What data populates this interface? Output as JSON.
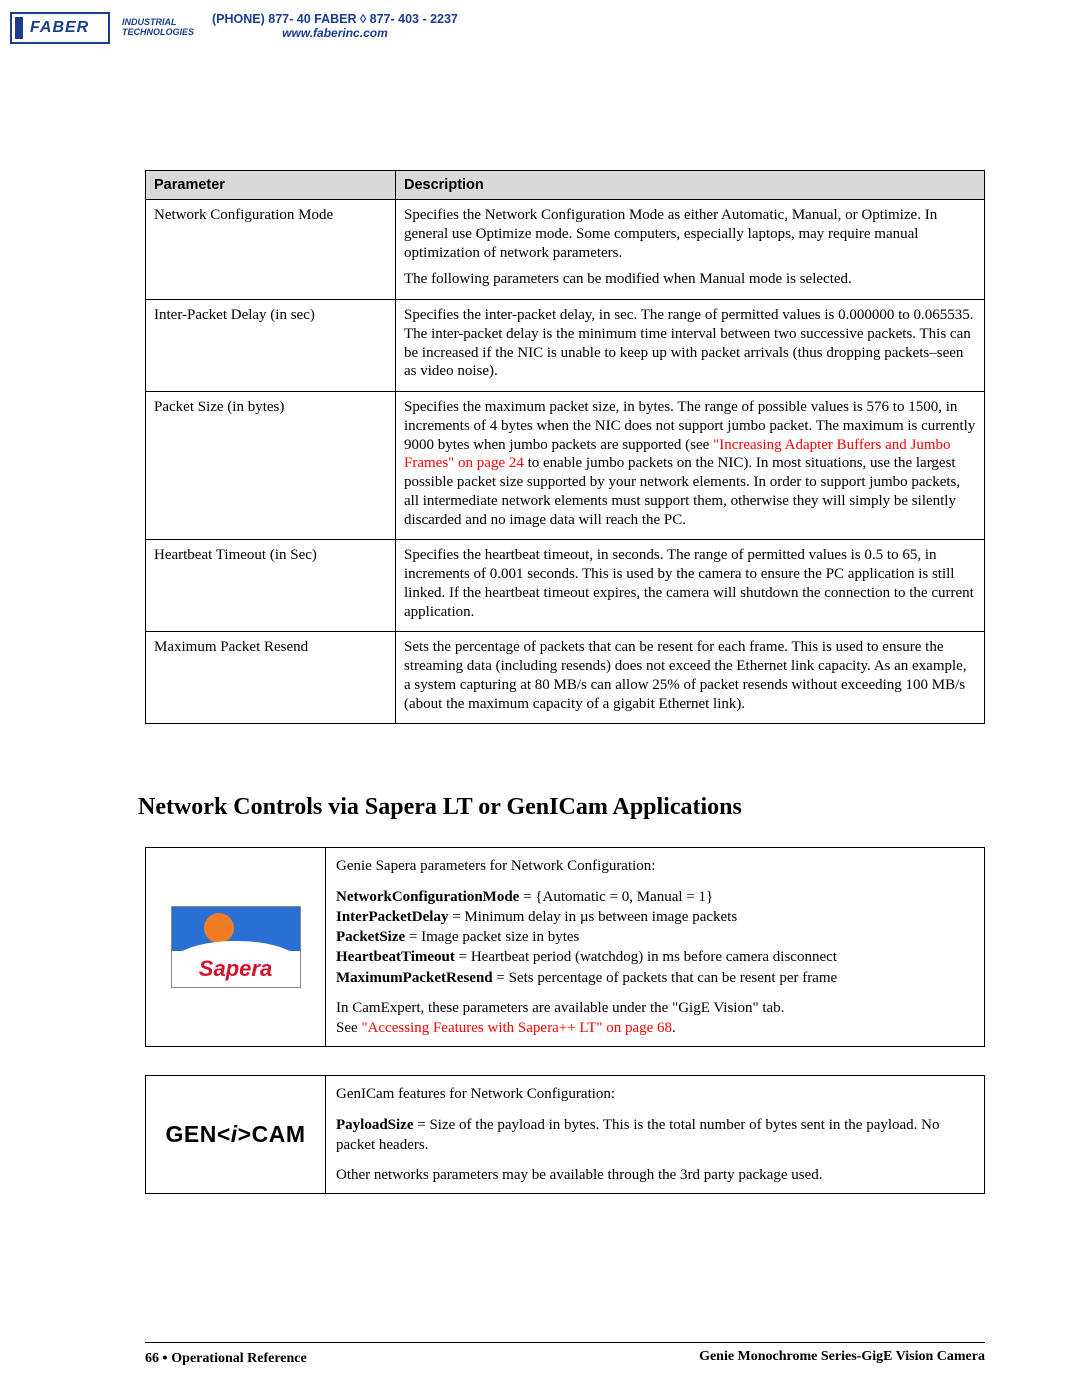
{
  "header": {
    "logo_name": "FABER",
    "logo_sub1": "INDUSTRIAL",
    "logo_sub2": "TECHNOLOGIES",
    "phone": "(PHONE) 877- 40 FABER  ◊  877- 403 - 2237",
    "url": "www.faberinc.com"
  },
  "param_table": {
    "headers": [
      "Parameter",
      "Description"
    ],
    "rows": [
      {
        "param": "Network Configuration Mode",
        "desc": [
          "Specifies the Network Configuration Mode as either Automatic, Manual, or Optimize. In general use Optimize mode. Some computers, especially laptops, may require manual optimization of network parameters.",
          "The following parameters can be modified when Manual mode is selected."
        ]
      },
      {
        "param": "Inter-Packet Delay (in sec)",
        "desc": [
          "Specifies the inter-packet delay, in sec. The range of permitted values is 0.000000 to 0.065535. The inter-packet delay is the minimum time interval between two successive packets. This can be increased if the NIC is unable to keep up with packet arrivals (thus dropping packets–seen as video noise)."
        ]
      },
      {
        "param": "Packet Size (in bytes)",
        "desc_pre": "Specifies the maximum packet size, in bytes. The range of possible values is 576 to 1500, in increments of 4 bytes when the NIC does not support jumbo packet. The maximum is currently 9000 bytes when jumbo packets are supported (see ",
        "desc_link": "\"Increasing Adapter Buffers and Jumbo Frames\" on page 24",
        "desc_post": " to enable jumbo packets on the NIC). In most situations, use the largest possible packet size supported by your network elements. In order to support jumbo packets, all intermediate network elements must support them, otherwise they will simply be silently discarded and no image data will reach the PC."
      },
      {
        "param": "Heartbeat Timeout (in Sec)",
        "desc": [
          "Specifies the heartbeat timeout, in seconds. The range of permitted values is 0.5 to 65, in increments of 0.001 seconds. This is used by the camera to ensure the PC application is still linked. If the heartbeat timeout expires, the camera will shutdown the connection to the current application."
        ]
      },
      {
        "param": "Maximum Packet Resend",
        "desc": [
          "Sets the percentage of packets that can be resent for each frame. This is used to ensure the streaming data (including resends) does not exceed the Ethernet link capacity. As an example, a system capturing at 80 MB/s can allow 25% of packet resends without exceeding 100 MB/s (about the maximum capacity of a gigabit Ethernet link)."
        ]
      }
    ]
  },
  "section_heading": "Network Controls via Sapera LT or GenICam Applications",
  "sapera_box": {
    "logo_text": "Sapera",
    "intro": "Genie Sapera parameters for Network Configuration:",
    "params": [
      {
        "name": "NetworkConfigurationMode",
        "rest": " = {Automatic = 0, Manual = 1}"
      },
      {
        "name": "InterPacketDelay",
        "rest": " = Minimum delay in µs between image packets"
      },
      {
        "name": "PacketSize",
        "rest": " = Image packet size in bytes"
      },
      {
        "name": "HeartbeatTimeout",
        "rest": " = Heartbeat period (watchdog) in ms before camera disconnect"
      },
      {
        "name": "MaximumPacketResend",
        "rest": " = Sets percentage of packets that can be resent per frame"
      }
    ],
    "tail_pre": "In CamExpert, these parameters are available under the \"GigE Vision\" tab.",
    "tail_see": "See ",
    "tail_link": "\"Accessing Features with Sapera++ LT\" on page 68",
    "tail_post": "."
  },
  "genicam_box": {
    "intro": "GenICam features for Network Configuration:",
    "param_name": "PayloadSize",
    "param_rest": " = Size of the payload in bytes. This is the total number of bytes sent in the payload. No packet headers.",
    "tail": "Other networks parameters may be available through the 3rd party package used."
  },
  "footer": {
    "page_num": "66",
    "left_label": "Operational Reference",
    "right_label": "Genie Monochrome Series-GigE Vision Camera"
  },
  "colors": {
    "header_bg": "#d9d9d9",
    "link_red": "#ff0000",
    "brand_blue": "#1a3d8f",
    "sapera_sky": "#2a6fd4",
    "sapera_sun": "#f07c23",
    "sapera_text": "#d4142c"
  }
}
